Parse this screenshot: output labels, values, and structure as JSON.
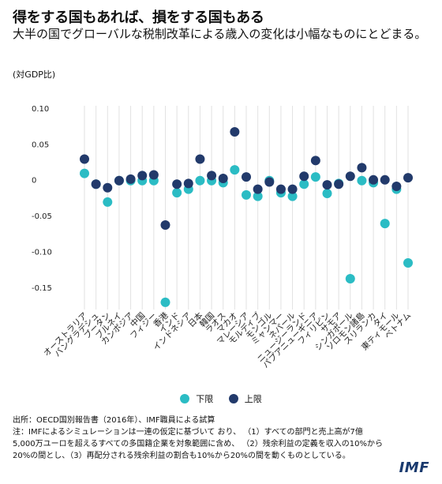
{
  "header": {
    "title": "得をする国もあれば、損をする国もある",
    "subtitle": "大半の国でグローバルな税制改革による歳入の変化は小幅なものにとどまる。",
    "unit": "(対GDP比)"
  },
  "legend": [
    {
      "label": "下限",
      "color": "#2bbcc4"
    },
    {
      "label": "上限",
      "color": "#223a6b"
    }
  ],
  "notes": {
    "source": "出所：OECD国別報告書（2016年）、IMF職員による試算",
    "note1": "注：IMFによるシミュレーションは一連の仮定に基づいて おり、 （1）すべての部門と売上高が7億",
    "note2": "5,000万ユーロを超えるすべての多国籍企業を対象範囲に含め、 （2）残余利益の定義を収入の10%から",
    "note3": "20%の間とし、（3）再配分される残余利益の割合も10%から20%の間を動くものとしている。"
  },
  "logo": "IMF",
  "chart_data": {
    "type": "scatter",
    "ylim": [
      -0.18,
      0.1
    ],
    "yticks": [
      0.1,
      0.05,
      0,
      -0.05,
      -0.1,
      -0.15
    ],
    "yticklabels": [
      "0.10",
      "0.05",
      "0",
      "-0.05",
      "-0.10",
      "-0.15"
    ],
    "grid": "vertical",
    "legend_position": "bottom",
    "categories": [
      "オーストラリア",
      "バングラデシュ",
      "ブータン",
      "ブルネイ",
      "カンボジア",
      "中国",
      "フィジー",
      "香港",
      "インド",
      "インドネシア",
      "日本",
      "韓国",
      "ラオス",
      "マカオ",
      "マレーシア",
      "モルディブ",
      "モンゴル",
      "ミャンマー",
      "ネパール",
      "ニュージーランド",
      "パプアニューギニア",
      "フィリピン",
      "サモア",
      "シンガポール",
      "ソロモン諸島",
      "スリランカ",
      "タイ",
      "東ティモール",
      "ベトナム"
    ],
    "series": [
      {
        "name": "下限",
        "color": "#2bbcc4",
        "values": [
          0.01,
          -0.005,
          -0.03,
          0.0,
          0.0,
          0.0,
          0.0,
          -0.17,
          -0.017,
          -0.012,
          0.0,
          0.0,
          -0.003,
          0.015,
          -0.02,
          -0.022,
          0.0,
          -0.017,
          -0.022,
          -0.005,
          0.005,
          -0.018,
          -0.004,
          -0.137,
          0.0,
          -0.003,
          -0.06,
          -0.012,
          -0.115
        ]
      },
      {
        "name": "上限",
        "color": "#223a6b",
        "values": [
          0.03,
          -0.005,
          -0.01,
          0.0,
          0.002,
          0.007,
          0.008,
          -0.062,
          -0.005,
          -0.004,
          0.03,
          0.007,
          0.003,
          0.068,
          0.005,
          -0.012,
          -0.002,
          -0.012,
          -0.012,
          0.006,
          0.028,
          -0.006,
          -0.005,
          0.006,
          0.018,
          0.001,
          0.001,
          -0.008,
          0.004
        ]
      }
    ]
  }
}
